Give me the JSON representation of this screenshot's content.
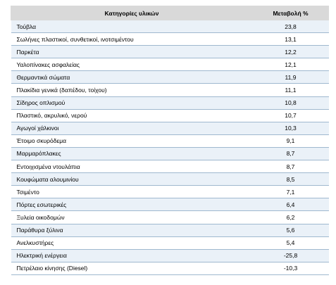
{
  "table": {
    "headers": {
      "category": "Κατηγορίες υλικών",
      "change": "Μεταβολή %"
    },
    "rows": [
      {
        "category": "Τούβλα",
        "change": "23,8"
      },
      {
        "category": "Σωλήνες πλαστικοί, συνθετικοί, ινοτσιμέντου",
        "change": "13,1"
      },
      {
        "category": "Παρκέτα",
        "change": "12,2"
      },
      {
        "category": "Υαλοπίνακες ασφαλείας",
        "change": "12,1"
      },
      {
        "category": "Θερμαντικά σώματα",
        "change": "11,9"
      },
      {
        "category": "Πλακίδια γενικά (δαπέδου, τοίχου)",
        "change": "11,1"
      },
      {
        "category": "Σίδηρος οπλισμού",
        "change": "10,8"
      },
      {
        "category": "Πλαστικό, ακρυλικό, νερού",
        "change": "10,7"
      },
      {
        "category": "Αγωγοί χάλκινοι",
        "change": "10,3"
      },
      {
        "category": "Έτοιμο σκυρόδεμα",
        "change": "9,1"
      },
      {
        "category": "Μαρμαρόπλακες",
        "change": "8,7"
      },
      {
        "category": "Εντοιχισμένα ντουλάπια",
        "change": "8,7"
      },
      {
        "category": "Κουφώματα αλουμινίου",
        "change": "8,5"
      },
      {
        "category": "Τσιμέντο",
        "change": "7,1"
      },
      {
        "category": "Πόρτες εσωτερικές",
        "change": "6,4"
      },
      {
        "category": "Ξυλεία οικοδομών",
        "change": "6,2"
      },
      {
        "category": "Παράθυρα ξύλινα",
        "change": "5,6"
      },
      {
        "category": "Ανελκυστήρες",
        "change": "5,4"
      },
      {
        "category": "Ηλεκτρική ενέργεια",
        "change": "-25,8"
      },
      {
        "category": "Πετρέλαιο κίνησης (Diesel)",
        "change": "-10,3"
      }
    ]
  }
}
